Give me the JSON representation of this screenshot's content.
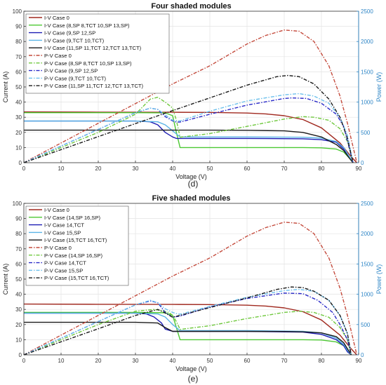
{
  "figure": {
    "captions": [
      "(d)",
      "(e)"
    ]
  },
  "chart_data": [
    {
      "type": "line",
      "title": "Four shaded modules",
      "xlabel": "Voltage (V)",
      "ylabel": "Current (A)",
      "y2label": "Power (W)",
      "xlim": [
        0,
        90
      ],
      "ylim": [
        0,
        100
      ],
      "y2lim": [
        0,
        2500
      ],
      "xticks": [
        0,
        10,
        20,
        30,
        40,
        50,
        60,
        70,
        80,
        90
      ],
      "yticks": [
        0,
        10,
        20,
        30,
        40,
        50,
        60,
        70,
        80,
        90,
        100
      ],
      "y2ticks": [
        0,
        500,
        1000,
        1500,
        2000,
        2500
      ],
      "grid": true,
      "legend": "top-left",
      "series": [
        {
          "name": "I-V Case 0",
          "axis": "left",
          "style": "solid",
          "color": "#a0281e",
          "x": [
            0,
            20,
            40,
            50,
            60,
            65,
            70,
            75,
            80,
            85,
            88,
            89.5
          ],
          "y": [
            33.5,
            33.4,
            33.3,
            33.2,
            32.8,
            32.2,
            31,
            28.5,
            23,
            13,
            4,
            0
          ]
        },
        {
          "name": "I-V Case (8,SP 8,TCT 10,SP 13,SP)",
          "axis": "left",
          "style": "solid",
          "color": "#4cc832",
          "x": [
            0,
            30,
            38,
            40,
            41,
            42,
            60,
            75,
            80,
            84,
            86,
            87.5,
            88.5
          ],
          "y": [
            33,
            33,
            32.9,
            31,
            20,
            10,
            10,
            10,
            9.8,
            9,
            7,
            3,
            0
          ]
        },
        {
          "name": "I-V Case (9,SP 12,SP",
          "axis": "left",
          "style": "solid",
          "color": "#1c1cb4",
          "x": [
            0,
            30,
            34,
            36,
            38,
            40,
            41,
            42,
            60,
            75,
            80,
            84,
            86,
            87.5,
            88.5
          ],
          "y": [
            27.5,
            27.5,
            27,
            25,
            20,
            17,
            16,
            16,
            16,
            15.8,
            15.2,
            13.5,
            9,
            4,
            0
          ]
        },
        {
          "name": "I-V Case (9,TCT 10,TCT)",
          "axis": "left",
          "style": "solid",
          "color": "#5ab4e6",
          "x": [
            0,
            30,
            36,
            38,
            40,
            41,
            42,
            60,
            75,
            80,
            84,
            86,
            87.5,
            88.5
          ],
          "y": [
            27.5,
            27.5,
            27,
            25,
            21,
            19,
            17,
            17,
            16.8,
            16.2,
            14,
            10,
            4,
            0
          ]
        },
        {
          "name": "I-V Case (11,SP 11,TCT 12,TCT 13,TCT)",
          "axis": "left",
          "style": "solid",
          "color": "#1a1a1a",
          "x": [
            0,
            40,
            50,
            60,
            70,
            75,
            80,
            84,
            86,
            87.5,
            88.5
          ],
          "y": [
            21.5,
            21.5,
            21.5,
            21.4,
            21,
            20,
            17,
            12,
            8,
            3,
            0
          ]
        },
        {
          "name": "P-V Case 0",
          "axis": "right",
          "style": "dashdot",
          "color": "#c44a3c",
          "x": [
            0,
            20,
            40,
            50,
            60,
            65,
            70,
            74,
            78,
            82,
            85,
            87,
            89.5
          ],
          "y": [
            0,
            650,
            1300,
            1600,
            1960,
            2100,
            2190,
            2170,
            2000,
            1600,
            1100,
            650,
            0
          ]
        },
        {
          "name": "P-V Case (8,SP 8,TCT 10,SP 13,SP)",
          "axis": "right",
          "style": "dashdot",
          "color": "#6ec83c",
          "x": [
            0,
            20,
            30,
            34,
            36,
            38,
            40,
            41,
            42,
            50,
            60,
            70,
            75,
            78,
            82,
            85,
            87,
            88.5
          ],
          "y": [
            0,
            500,
            800,
            1050,
            1080,
            1000,
            900,
            700,
            420,
            480,
            600,
            720,
            760,
            750,
            700,
            560,
            350,
            0
          ]
        },
        {
          "name": "P-V Case (9,SP 12,SP",
          "axis": "right",
          "style": "dashdot",
          "color": "#2828c8",
          "x": [
            0,
            20,
            30,
            34,
            36,
            38,
            40,
            41,
            42,
            50,
            60,
            70,
            72,
            76,
            80,
            84,
            86,
            88.5
          ],
          "y": [
            0,
            550,
            825,
            900,
            880,
            760,
            690,
            670,
            670,
            800,
            950,
            1060,
            1070,
            1060,
            980,
            800,
            600,
            0
          ]
        },
        {
          "name": "P-V Case (9,TCT 10,TCT)",
          "axis": "right",
          "style": "dashdot",
          "color": "#6cc0ec",
          "x": [
            0,
            20,
            30,
            34,
            36,
            38,
            40,
            41,
            42,
            50,
            60,
            70,
            74,
            78,
            82,
            85,
            87,
            88.5
          ],
          "y": [
            0,
            550,
            825,
            900,
            880,
            790,
            700,
            690,
            690,
            850,
            1020,
            1120,
            1140,
            1100,
            980,
            750,
            450,
            0
          ]
        },
        {
          "name": "P-V Case (11,SP 11,TCT 12,TCT 13,TCT)",
          "axis": "right",
          "style": "dashdot",
          "color": "#1a1a1a",
          "x": [
            0,
            20,
            40,
            60,
            68,
            71,
            74,
            78,
            82,
            85,
            87,
            88.5
          ],
          "y": [
            0,
            430,
            860,
            1280,
            1420,
            1440,
            1420,
            1300,
            1050,
            750,
            400,
            0
          ]
        }
      ]
    },
    {
      "type": "line",
      "title": "Five shaded modules",
      "xlabel": "Voltage (V)",
      "ylabel": "Current (A)",
      "y2label": "Power (W)",
      "xlim": [
        0,
        90
      ],
      "ylim": [
        0,
        100
      ],
      "y2lim": [
        0,
        2500
      ],
      "xticks": [
        0,
        10,
        20,
        30,
        40,
        50,
        60,
        70,
        80,
        90
      ],
      "yticks": [
        0,
        10,
        20,
        30,
        40,
        50,
        60,
        70,
        80,
        90,
        100
      ],
      "y2ticks": [
        0,
        500,
        1000,
        1500,
        2000,
        2500
      ],
      "grid": true,
      "legend": "top-left",
      "series": [
        {
          "name": "I-V Case 0",
          "axis": "left",
          "style": "solid",
          "color": "#a0281e",
          "x": [
            0,
            20,
            40,
            50,
            60,
            65,
            70,
            75,
            80,
            85,
            88,
            89.5
          ],
          "y": [
            33.5,
            33.4,
            33.3,
            33.2,
            32.8,
            32.2,
            31,
            28.5,
            23,
            13,
            4,
            0
          ]
        },
        {
          "name": "I-V Case (14,SP 16,SP)",
          "axis": "left",
          "style": "solid",
          "color": "#4cc832",
          "x": [
            0,
            30,
            38,
            40,
            41,
            42,
            60,
            75,
            80,
            84,
            86,
            87,
            88
          ],
          "y": [
            28,
            28,
            27.8,
            26,
            18,
            10,
            10,
            10,
            9.8,
            8.5,
            6,
            3,
            0
          ]
        },
        {
          "name": "I-V Case 14,TCT",
          "axis": "left",
          "style": "solid",
          "color": "#1c1cb4",
          "x": [
            0,
            30,
            33,
            35,
            37,
            38,
            40,
            42,
            60,
            75,
            80,
            84,
            86,
            87,
            88
          ],
          "y": [
            27.5,
            27.5,
            27,
            25,
            21,
            17,
            15.5,
            15.5,
            15.5,
            15,
            13.5,
            10,
            6,
            2,
            0
          ]
        },
        {
          "name": "I-V Case 15,SP",
          "axis": "left",
          "style": "solid",
          "color": "#5ab4e6",
          "x": [
            0,
            30,
            36,
            38,
            40,
            41,
            42,
            60,
            75,
            80,
            84,
            86,
            87,
            88
          ],
          "y": [
            27.5,
            27.5,
            27,
            25,
            20,
            18,
            16,
            16,
            15.5,
            14.5,
            11,
            7,
            3,
            0
          ]
        },
        {
          "name": "I-V Case (15,TCT 16,TCT)",
          "axis": "left",
          "style": "solid",
          "color": "#1a1a1a",
          "x": [
            0,
            30,
            36,
            38,
            40,
            60,
            70,
            75,
            80,
            84,
            86,
            87,
            88
          ],
          "y": [
            21.5,
            21.5,
            21,
            18,
            15.5,
            15.5,
            15.4,
            15.2,
            14.5,
            12,
            8,
            4,
            0
          ]
        },
        {
          "name": "P-V Case 0",
          "axis": "right",
          "style": "dashdot",
          "color": "#c44a3c",
          "x": [
            0,
            20,
            40,
            50,
            60,
            65,
            70,
            74,
            78,
            82,
            85,
            87,
            89.5
          ],
          "y": [
            0,
            650,
            1300,
            1600,
            1960,
            2100,
            2190,
            2170,
            2000,
            1600,
            1100,
            650,
            0
          ]
        },
        {
          "name": "P-V Case (14,SP 16,SP)",
          "axis": "right",
          "style": "dashdot",
          "color": "#6ec83c",
          "x": [
            0,
            20,
            30,
            35,
            37,
            39,
            40,
            41,
            42,
            50,
            60,
            70,
            74,
            78,
            82,
            85,
            87,
            88
          ],
          "y": [
            0,
            500,
            720,
            750,
            730,
            700,
            650,
            550,
            420,
            480,
            600,
            700,
            720,
            700,
            620,
            450,
            250,
            0
          ]
        },
        {
          "name": "P-V Case 14,TCT",
          "axis": "right",
          "style": "dashdot",
          "color": "#2828c8",
          "x": [
            0,
            20,
            30,
            34,
            36,
            38,
            40,
            42,
            50,
            60,
            70,
            75,
            79,
            83,
            85,
            87,
            88
          ],
          "y": [
            0,
            550,
            825,
            890,
            860,
            700,
            620,
            640,
            790,
            930,
            1020,
            1010,
            900,
            700,
            500,
            250,
            0
          ]
        },
        {
          "name": "P-V Case 15,SP",
          "axis": "right",
          "style": "dashdot",
          "color": "#6cc0ec",
          "x": [
            0,
            20,
            30,
            34,
            36,
            38,
            40,
            41,
            42,
            50,
            60,
            70,
            74,
            78,
            82,
            85,
            87,
            88
          ],
          "y": [
            0,
            550,
            825,
            900,
            860,
            760,
            700,
            680,
            670,
            800,
            950,
            1060,
            1080,
            1050,
            900,
            650,
            350,
            0
          ]
        },
        {
          "name": "P-V Case (15,TCT 16,TCT)",
          "axis": "right",
          "style": "dashdot",
          "color": "#1a1a1a",
          "x": [
            0,
            20,
            30,
            36,
            38,
            40,
            50,
            60,
            68,
            72,
            75,
            78,
            82,
            85,
            87,
            88
          ],
          "y": [
            0,
            430,
            650,
            750,
            690,
            620,
            780,
            940,
            1080,
            1120,
            1110,
            1050,
            900,
            650,
            350,
            0
          ]
        }
      ]
    }
  ]
}
